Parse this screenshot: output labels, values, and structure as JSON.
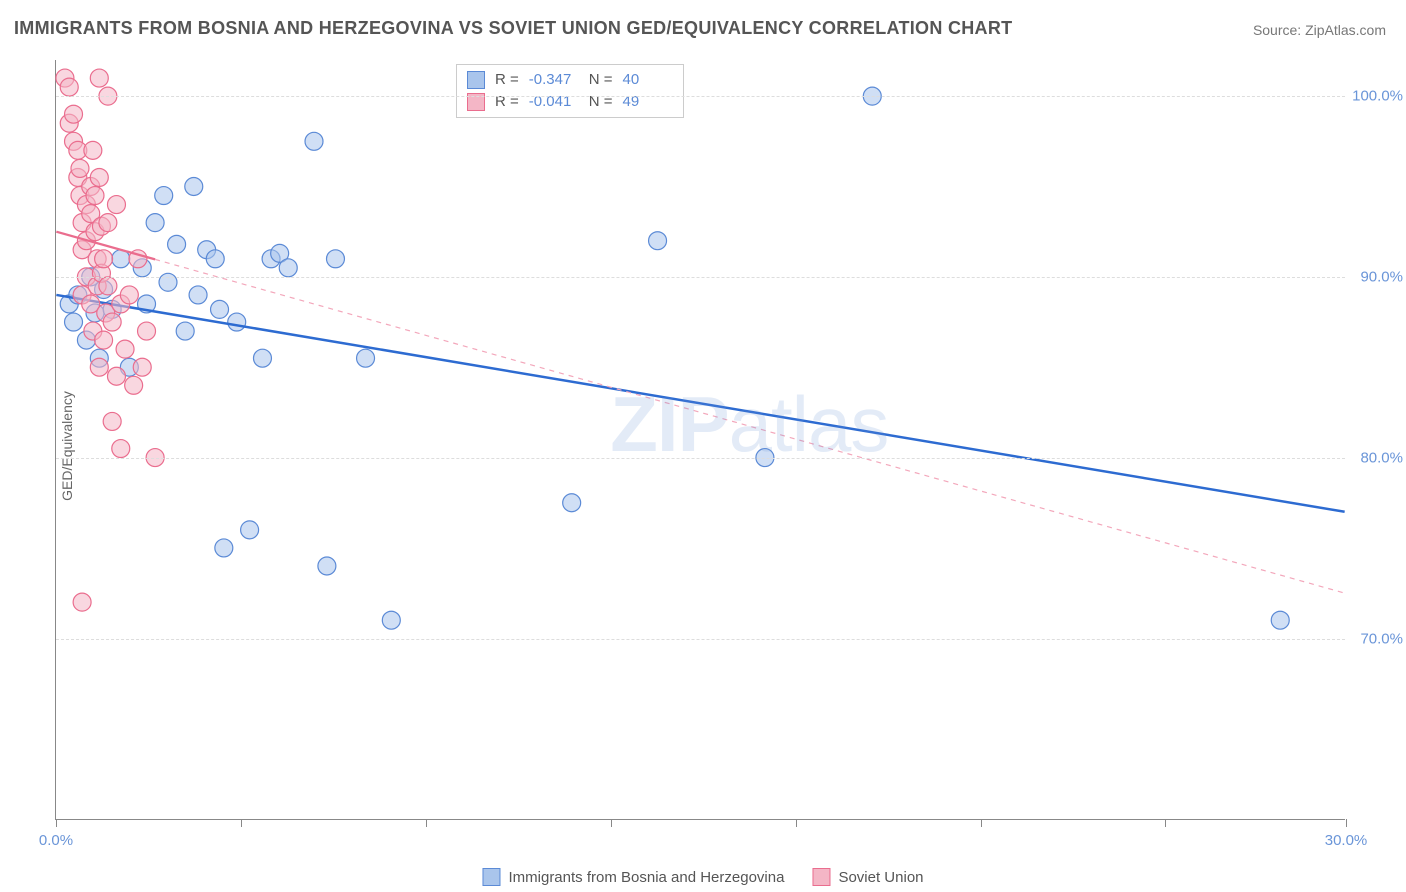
{
  "title": "IMMIGRANTS FROM BOSNIA AND HERZEGOVINA VS SOVIET UNION GED/EQUIVALENCY CORRELATION CHART",
  "source": "Source: ZipAtlas.com",
  "watermark": {
    "bold": "ZIP",
    "rest": "atlas"
  },
  "y_axis_label": "GED/Equivalency",
  "chart": {
    "type": "scatter-with-regression",
    "background_color": "#ffffff",
    "grid_color": "#dddddd",
    "axis_color": "#888888",
    "tick_label_color": "#6a95d8",
    "xlim": [
      0.0,
      30.0
    ],
    "ylim": [
      60.0,
      102.0
    ],
    "x_ticks": [
      0.0,
      4.3,
      8.6,
      12.9,
      17.2,
      21.5,
      25.8,
      30.0
    ],
    "x_tick_labels": {
      "0.0": "0.0%",
      "30.0": "30.0%"
    },
    "y_ticks": [
      70.0,
      80.0,
      90.0,
      100.0
    ],
    "y_tick_labels": {
      "70.0": "70.0%",
      "80.0": "80.0%",
      "90.0": "90.0%",
      "100.0": "100.0%"
    },
    "marker_radius": 9,
    "marker_stroke_width": 1.2,
    "series": [
      {
        "name": "Immigrants from Bosnia and Herzegovina",
        "fill": "#a9c5ec",
        "stroke": "#5b8ad6",
        "fill_opacity": 0.55,
        "points": [
          [
            0.3,
            88.5
          ],
          [
            0.4,
            87.5
          ],
          [
            0.5,
            89.0
          ],
          [
            0.7,
            86.5
          ],
          [
            0.8,
            90.0
          ],
          [
            0.9,
            88.0
          ],
          [
            1.0,
            85.5
          ],
          [
            1.1,
            89.3
          ],
          [
            1.3,
            88.2
          ],
          [
            1.5,
            91.0
          ],
          [
            1.7,
            85.0
          ],
          [
            2.0,
            90.5
          ],
          [
            2.1,
            88.5
          ],
          [
            2.3,
            93.0
          ],
          [
            2.5,
            94.5
          ],
          [
            2.6,
            89.7
          ],
          [
            2.8,
            91.8
          ],
          [
            3.0,
            87.0
          ],
          [
            3.2,
            95.0
          ],
          [
            3.3,
            89.0
          ],
          [
            3.5,
            91.5
          ],
          [
            3.7,
            91.0
          ],
          [
            3.8,
            88.2
          ],
          [
            3.9,
            75.0
          ],
          [
            4.2,
            87.5
          ],
          [
            4.5,
            76.0
          ],
          [
            4.8,
            85.5
          ],
          [
            5.0,
            91.0
          ],
          [
            5.2,
            91.3
          ],
          [
            5.4,
            90.5
          ],
          [
            6.0,
            97.5
          ],
          [
            6.3,
            74.0
          ],
          [
            6.5,
            91.0
          ],
          [
            7.2,
            85.5
          ],
          [
            7.8,
            71.0
          ],
          [
            12.0,
            77.5
          ],
          [
            14.0,
            92.0
          ],
          [
            16.5,
            80.0
          ],
          [
            19.0,
            100.0
          ],
          [
            28.5,
            71.0
          ]
        ],
        "regression": {
          "x1": 0.0,
          "y1": 89.0,
          "x2": 30.0,
          "y2": 77.0,
          "width": 2.5,
          "dash": "",
          "color": "#2d6bd1"
        }
      },
      {
        "name": "Soviet Union",
        "fill": "#f4b6c6",
        "stroke": "#ea6d8e",
        "fill_opacity": 0.55,
        "points": [
          [
            0.2,
            101.0
          ],
          [
            0.3,
            100.5
          ],
          [
            0.3,
            98.5
          ],
          [
            0.4,
            99.0
          ],
          [
            0.4,
            97.5
          ],
          [
            0.5,
            97.0
          ],
          [
            0.5,
            95.5
          ],
          [
            0.55,
            94.5
          ],
          [
            0.55,
            96.0
          ],
          [
            0.6,
            93.0
          ],
          [
            0.6,
            91.5
          ],
          [
            0.6,
            89.0
          ],
          [
            0.7,
            94.0
          ],
          [
            0.7,
            92.0
          ],
          [
            0.7,
            90.0
          ],
          [
            0.8,
            95.0
          ],
          [
            0.8,
            93.5
          ],
          [
            0.8,
            88.5
          ],
          [
            0.85,
            87.0
          ],
          [
            0.85,
            97.0
          ],
          [
            0.9,
            92.5
          ],
          [
            0.9,
            94.5
          ],
          [
            0.95,
            89.5
          ],
          [
            0.95,
            91.0
          ],
          [
            1.0,
            85.0
          ],
          [
            1.0,
            95.5
          ],
          [
            1.05,
            90.2
          ],
          [
            1.05,
            92.8
          ],
          [
            1.1,
            86.5
          ],
          [
            1.1,
            91.0
          ],
          [
            1.15,
            88.0
          ],
          [
            1.2,
            93.0
          ],
          [
            1.2,
            89.5
          ],
          [
            1.3,
            82.0
          ],
          [
            1.3,
            87.5
          ],
          [
            1.4,
            94.0
          ],
          [
            1.4,
            84.5
          ],
          [
            1.5,
            80.5
          ],
          [
            1.5,
            88.5
          ],
          [
            1.6,
            86.0
          ],
          [
            1.7,
            89.0
          ],
          [
            1.8,
            84.0
          ],
          [
            1.9,
            91.0
          ],
          [
            2.0,
            85.0
          ],
          [
            2.1,
            87.0
          ],
          [
            2.3,
            80.0
          ],
          [
            0.6,
            72.0
          ],
          [
            1.0,
            101.0
          ],
          [
            1.2,
            100.0
          ]
        ],
        "regression": {
          "x1": 0.0,
          "y1": 92.5,
          "x2": 30.0,
          "y2": 72.5,
          "width": 1.2,
          "dash": "5,5",
          "color": "#f3a7bb",
          "solid_until_x": 2.3,
          "solid_width": 2.3,
          "solid_color": "#ea6d8e"
        }
      }
    ]
  },
  "legend_top": {
    "rows": [
      {
        "swatch_fill": "#a9c5ec",
        "swatch_stroke": "#5b8ad6",
        "r_label": "R =",
        "r_value": "-0.347",
        "n_label": "N =",
        "n_value": "40"
      },
      {
        "swatch_fill": "#f4b6c6",
        "swatch_stroke": "#ea6d8e",
        "r_label": "R =",
        "r_value": "-0.041",
        "n_label": "N =",
        "n_value": "49"
      }
    ]
  },
  "legend_bottom": {
    "items": [
      {
        "swatch_fill": "#a9c5ec",
        "swatch_stroke": "#5b8ad6",
        "label": "Immigrants from Bosnia and Herzegovina"
      },
      {
        "swatch_fill": "#f4b6c6",
        "swatch_stroke": "#ea6d8e",
        "label": "Soviet Union"
      }
    ]
  }
}
